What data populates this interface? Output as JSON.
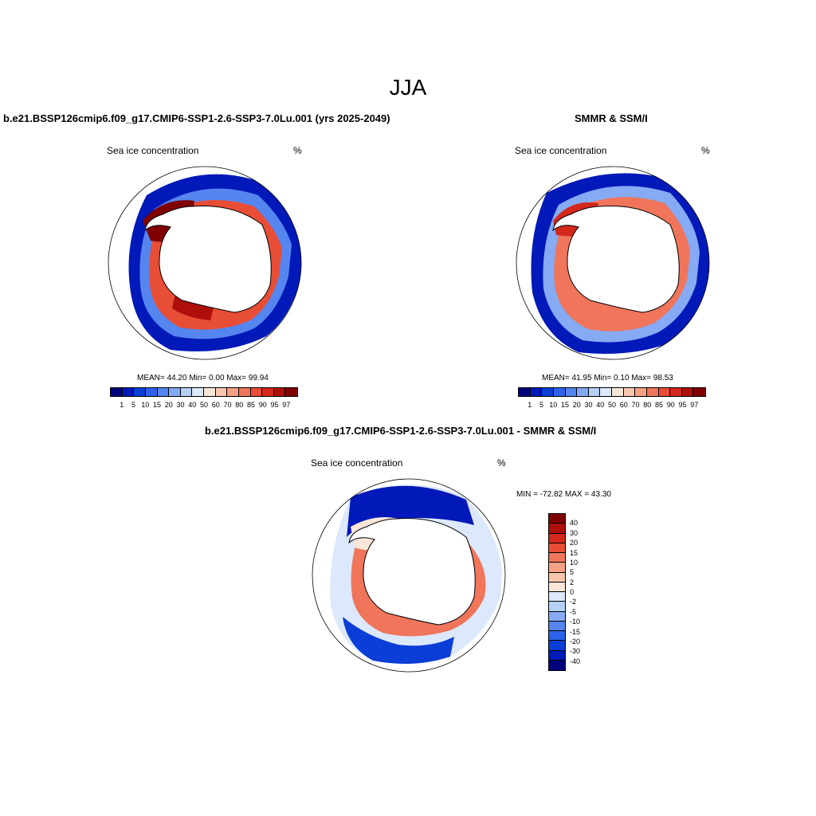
{
  "page": {
    "title": "JJA"
  },
  "panels": {
    "model": {
      "title": "b.e21.BSSP126cmip6.f09_g17.CMIP6-SSP1-2.6-SSP3-7.0Lu.001 (yrs 2025-2049)",
      "left_label": "Sea ice concentration",
      "right_label": "%",
      "stats": "MEAN=  44.20  Min=   0.00  Max=  99.94"
    },
    "obs": {
      "title": "SMMR & SSM/I",
      "left_label": "Sea ice concentration",
      "right_label": "%",
      "stats": "MEAN=  41.95  Min=   0.10  Max=  98.53"
    },
    "diff": {
      "title": "b.e21.BSSP126cmip6.f09_g17.CMIP6-SSP1-2.6-SSP3-7.0Lu.001 - SMMR & SSM/I",
      "left_label": "Sea ice concentration",
      "right_label": "%",
      "stats": "MIN = -72.82 MAX =  43.30"
    }
  },
  "chart_data": [
    {
      "type": "heatmap",
      "projection": "south-polar-stereographic",
      "variable": "Sea ice concentration",
      "units": "%",
      "mean": 44.2,
      "min": 0.0,
      "max": 99.94,
      "colorbar_levels": [
        "1",
        "5",
        "10",
        "15",
        "20",
        "30",
        "40",
        "50",
        "60",
        "70",
        "80",
        "85",
        "90",
        "95",
        "97"
      ],
      "colorbar_colors": [
        "#00007f",
        "#0019b8",
        "#0a3ed6",
        "#2d62ea",
        "#5585ef",
        "#86aaf3",
        "#b5cff7",
        "#dce8fb",
        "#fbe6da",
        "#f8c7ae",
        "#f5a183",
        "#f0755b",
        "#e84d35",
        "#d3281b",
        "#ae0f0b",
        "#800000"
      ]
    },
    {
      "type": "heatmap",
      "projection": "south-polar-stereographic",
      "variable": "Sea ice concentration",
      "units": "%",
      "mean": 41.95,
      "min": 0.1,
      "max": 98.53,
      "colorbar_levels": [
        "1",
        "5",
        "10",
        "15",
        "20",
        "30",
        "40",
        "50",
        "60",
        "70",
        "80",
        "85",
        "90",
        "95",
        "97"
      ],
      "colorbar_colors": [
        "#00007f",
        "#0019b8",
        "#0a3ed6",
        "#2d62ea",
        "#5585ef",
        "#86aaf3",
        "#b5cff7",
        "#dce8fb",
        "#fbe6da",
        "#f8c7ae",
        "#f5a183",
        "#f0755b",
        "#e84d35",
        "#d3281b",
        "#ae0f0b",
        "#800000"
      ]
    },
    {
      "type": "heatmap",
      "projection": "south-polar-stereographic",
      "variable": "Sea ice concentration",
      "units": "%",
      "min": -72.82,
      "max": 43.3,
      "colorbar_levels": [
        "40",
        "30",
        "20",
        "15",
        "10",
        "5",
        "2",
        "0",
        "-2",
        "-5",
        "-10",
        "-15",
        "-20",
        "-30",
        "-40"
      ],
      "colorbar_colors": [
        "#800000",
        "#ae0f0b",
        "#d3281b",
        "#e84d35",
        "#f0755b",
        "#f5a183",
        "#f8c7ae",
        "#fbe6da",
        "#dce8fb",
        "#b5cff7",
        "#86aaf3",
        "#5585ef",
        "#2d62ea",
        "#0a3ed6",
        "#0019b8",
        "#00007f"
      ]
    }
  ]
}
